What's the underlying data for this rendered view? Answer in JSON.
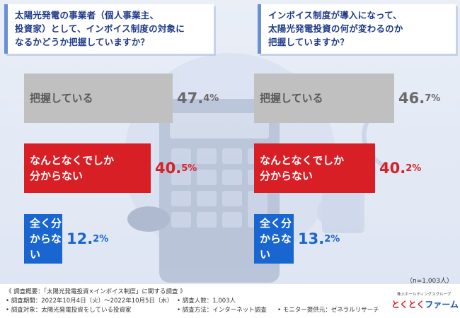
{
  "questions": [
    {
      "text": "太陽光発電の事業者（個人事業主、\n投資家）として、インボイス制度の対象に\nなるかどうか把握していますか？"
    },
    {
      "text": "インボイス制度が導入になって、\n太陽光発電投資の何が変わるのか\n把握していますか？"
    }
  ],
  "chart_data": [
    {
      "type": "bar",
      "title": "太陽光発電の事業者（個人事業主、投資家）として、インボイス制度の対象になるかどうか把握していますか？",
      "categories": [
        "把握している",
        "なんとなくでしか\n分からない",
        "全く分からない"
      ],
      "values": [
        47.4,
        40.5,
        12.2
      ],
      "value_labels": [
        {
          "int": "47.",
          "dec": "4%"
        },
        {
          "int": "40.",
          "dec": "5%"
        },
        {
          "int": "12.",
          "dec": "2%"
        }
      ],
      "colors": [
        "#c0c0c0",
        "#d81f26",
        "#1a66d0"
      ],
      "unit": "%"
    },
    {
      "type": "bar",
      "title": "インボイス制度が導入になって、太陽光発電投資の何が変わるのか把握していますか？",
      "categories": [
        "把握している",
        "なんとなくでしか\n分からない",
        "全く分からない"
      ],
      "values": [
        46.7,
        40.2,
        13.2
      ],
      "value_labels": [
        {
          "int": "46.",
          "dec": "7%"
        },
        {
          "int": "40.",
          "dec": "2%"
        },
        {
          "int": "13.",
          "dec": "2%"
        }
      ],
      "colors": [
        "#c0c0c0",
        "#d81f26",
        "#1a66d0"
      ],
      "unit": "%"
    }
  ],
  "sample_note": "（n=1,003人）",
  "footer": {
    "overview": "《 調査概要：「太陽光発電投資×インボイス制度」に関する調査 》",
    "period": "• 調査期間：2022年10月4日（火）〜2022年10月5日（水）",
    "target": "• 調査対象：太陽光発電投資をしている投資家",
    "count": "• 調査人数：1,003人",
    "method": "• 調査方法：インターネット調査",
    "provider": "• モニター提供元：ゼネラルリサーチ",
    "logo_top": "株上ホールディングスグループ",
    "logo_red": "とくとく",
    "logo_blue": "ファーム"
  }
}
